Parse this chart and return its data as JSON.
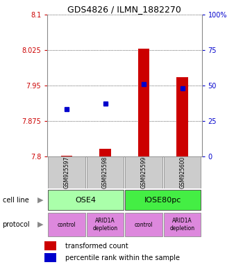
{
  "title": "GDS4826 / ILMN_1882270",
  "samples": [
    "GSM925597",
    "GSM925598",
    "GSM925599",
    "GSM925600"
  ],
  "transformed_counts": [
    7.801,
    7.815,
    8.028,
    7.968
  ],
  "percentile_ranks": [
    33,
    37,
    51,
    48
  ],
  "ylim_left": [
    7.8,
    8.1
  ],
  "ylim_right": [
    0,
    100
  ],
  "yticks_left": [
    7.8,
    7.875,
    7.95,
    8.025,
    8.1
  ],
  "yticks_right": [
    0,
    25,
    50,
    75,
    100
  ],
  "ytick_labels_left": [
    "7.8",
    "7.875",
    "7.95",
    "8.025",
    "8.1"
  ],
  "ytick_labels_right": [
    "0",
    "25",
    "50",
    "75",
    "100%"
  ],
  "bar_color": "#cc0000",
  "dot_color": "#0000cc",
  "cell_line_labels": [
    "OSE4",
    "IOSE80pc"
  ],
  "cell_line_colors": [
    "#aaffaa",
    "#44ee44"
  ],
  "cell_line_spans": [
    [
      0,
      2
    ],
    [
      2,
      4
    ]
  ],
  "protocol_labels": [
    "control",
    "ARID1A\ndepletion",
    "control",
    "ARID1A\ndepletion"
  ],
  "protocol_color": "#dd88dd",
  "sample_box_color": "#cccccc",
  "left_axis_color": "#cc0000",
  "right_axis_color": "#0000cc",
  "bar_width": 0.3
}
